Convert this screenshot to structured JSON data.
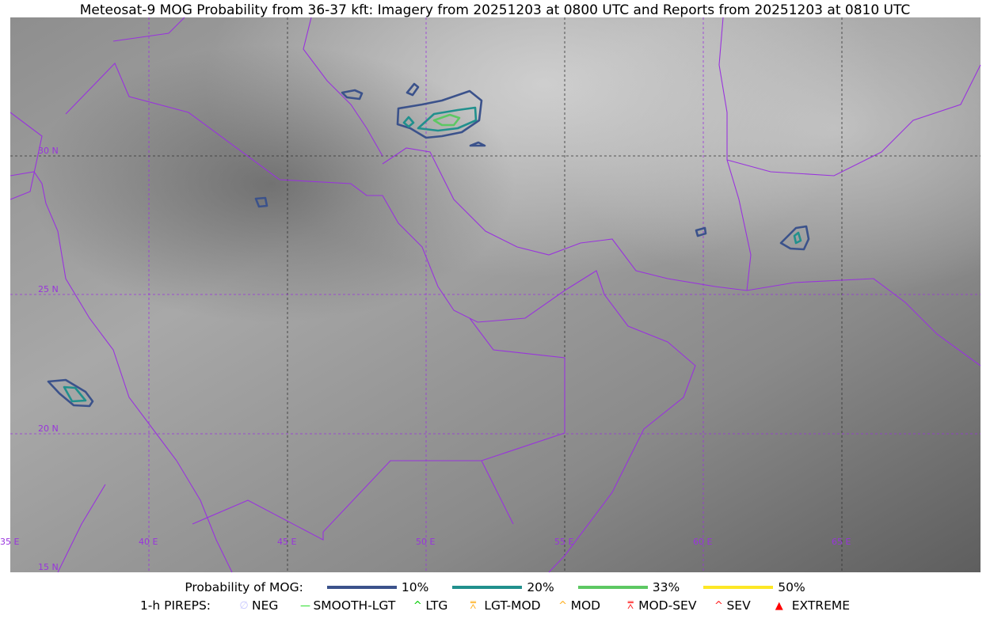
{
  "title": "Meteosat-9 MOG Probability from 36-37 kft: Imagery from 20251203 at 0800 UTC and Reports from 20251203 at 0810 UTC",
  "map": {
    "lon_labels": [
      "35 E",
      "40 E",
      "45 E",
      "50 E",
      "55 E",
      "60 E",
      "65 E"
    ],
    "lat_labels": [
      "30 N",
      "25 N",
      "20 N",
      "15 N"
    ],
    "grid_color": "#9933dd",
    "coastline_color": "#9933dd"
  },
  "legend": {
    "probability_label": "Probability of MOG:",
    "levels": [
      {
        "label": "10%",
        "color": "#3b528b"
      },
      {
        "label": "20%",
        "color": "#21908d"
      },
      {
        "label": "33%",
        "color": "#5dc863"
      },
      {
        "label": "50%",
        "color": "#fde725"
      }
    ],
    "pireps_label": "1-h PIREPS:",
    "pireps": [
      {
        "label": "NEG",
        "color": "#c8c8ff",
        "icon": "neg-circle-icon"
      },
      {
        "label": "SMOOTH-LGT",
        "color": "#22dd22",
        "icon": "line-icon"
      },
      {
        "label": "LTG",
        "color": "#00cc00",
        "icon": "caret-icon"
      },
      {
        "label": "LGT-MOD",
        "color": "#ffb020",
        "icon": "caret-bar-icon"
      },
      {
        "label": "MOD",
        "color": "#ffb020",
        "icon": "caret-icon"
      },
      {
        "label": "MOD-SEV",
        "color": "#ff2020",
        "icon": "double-caret-bar-icon"
      },
      {
        "label": "SEV",
        "color": "#ff2020",
        "icon": "double-caret-icon"
      },
      {
        "label": "EXTREME",
        "color": "#ff0000",
        "icon": "filled-triangle-icon"
      }
    ]
  }
}
